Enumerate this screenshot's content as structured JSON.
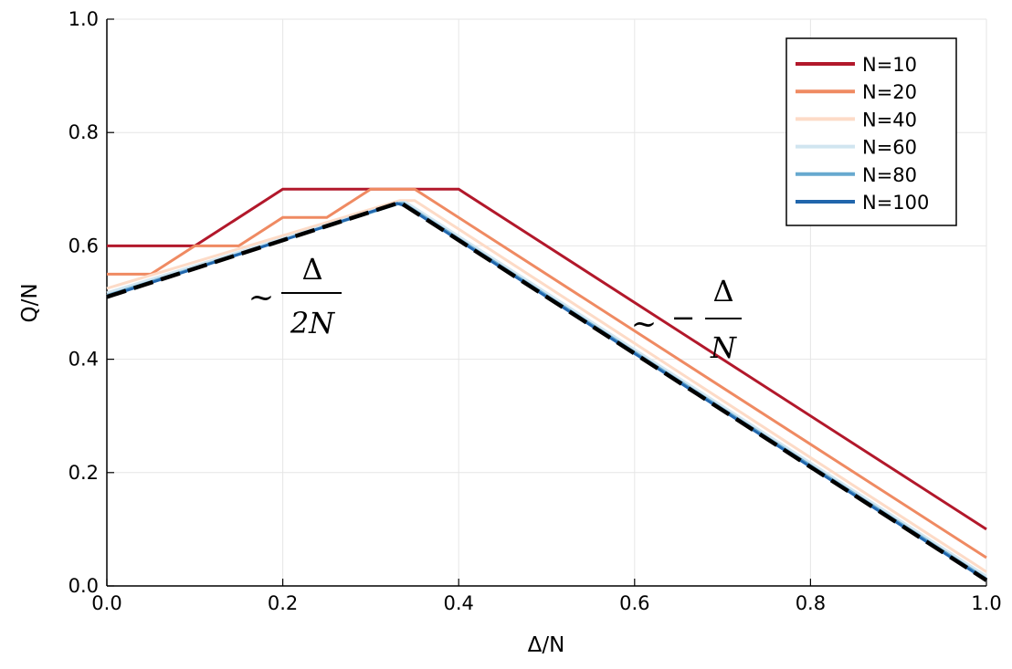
{
  "chart_data": {
    "type": "line",
    "xlabel": "Δ/N",
    "ylabel": "Q/N",
    "xlim": [
      0,
      1
    ],
    "ylim": [
      0,
      1
    ],
    "x_ticks": [
      0,
      0.2,
      0.4,
      0.6,
      0.8,
      1.0
    ],
    "y_ticks": [
      0,
      0.2,
      0.4,
      0.6,
      0.8,
      1.0
    ],
    "x_tick_labels": [
      "0.0",
      "0.2",
      "0.4",
      "0.6",
      "0.8",
      "1.0"
    ],
    "y_tick_labels": [
      "0.0",
      "0.2",
      "0.4",
      "0.6",
      "0.8",
      "1.0"
    ],
    "grid": true,
    "legend_position": "top-right",
    "series": [
      {
        "name": "N=10",
        "color": "#b2182b",
        "n": 10
      },
      {
        "name": "N=20",
        "color": "#ef8a62",
        "n": 20
      },
      {
        "name": "N=40",
        "color": "#fddbc7",
        "n": 40
      },
      {
        "name": "N=60",
        "color": "#d1e5f0",
        "n": 60
      },
      {
        "name": "N=80",
        "color": "#67a9cf",
        "n": 80
      },
      {
        "name": "N=100",
        "color": "#2166ac",
        "n": 100
      }
    ],
    "limit_curve": {
      "style": "dashed",
      "color": "#000000",
      "x": [
        0,
        0.3333,
        1.0
      ],
      "y": [
        0.51,
        0.6767,
        0.01
      ]
    },
    "annotations": [
      {
        "prefix": "~",
        "sign": "",
        "numerator": "Δ",
        "denominator": "2N"
      },
      {
        "prefix": "~",
        "sign": "−",
        "numerator": "Δ",
        "denominator": "N"
      }
    ]
  }
}
